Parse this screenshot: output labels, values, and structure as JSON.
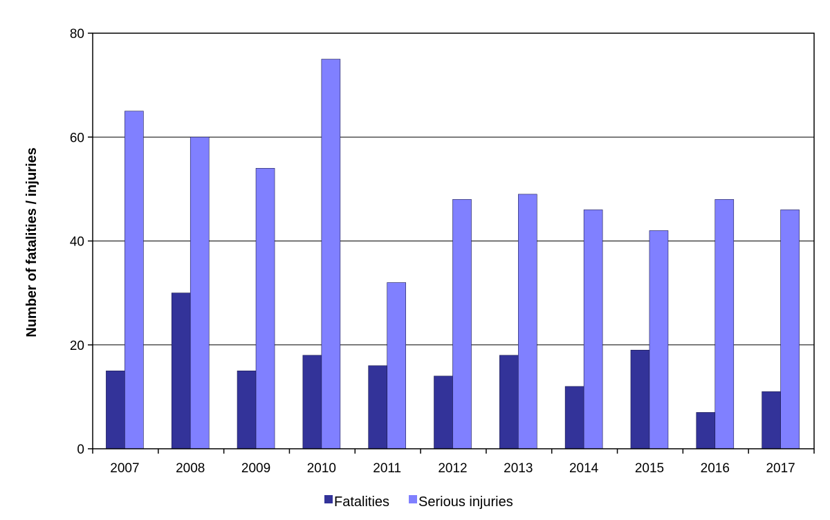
{
  "chart_data": {
    "type": "bar",
    "title": "",
    "xlabel": "",
    "ylabel": "Number of fatalities / injuries",
    "ylim": [
      0,
      80
    ],
    "yticks": [
      0,
      20,
      40,
      60,
      80
    ],
    "grid": true,
    "legend_position": "bottom",
    "categories": [
      "2007",
      "2008",
      "2009",
      "2010",
      "2011",
      "2012",
      "2013",
      "2014",
      "2015",
      "2016",
      "2017"
    ],
    "series": [
      {
        "name": "Fatalities",
        "color": "#333399",
        "values": [
          15,
          30,
          15,
          18,
          16,
          14,
          18,
          12,
          19,
          7,
          11
        ]
      },
      {
        "name": "Serious injuries",
        "color": "#8080FF",
        "values": [
          65,
          60,
          54,
          75,
          32,
          48,
          49,
          46,
          42,
          48,
          46
        ]
      }
    ]
  }
}
